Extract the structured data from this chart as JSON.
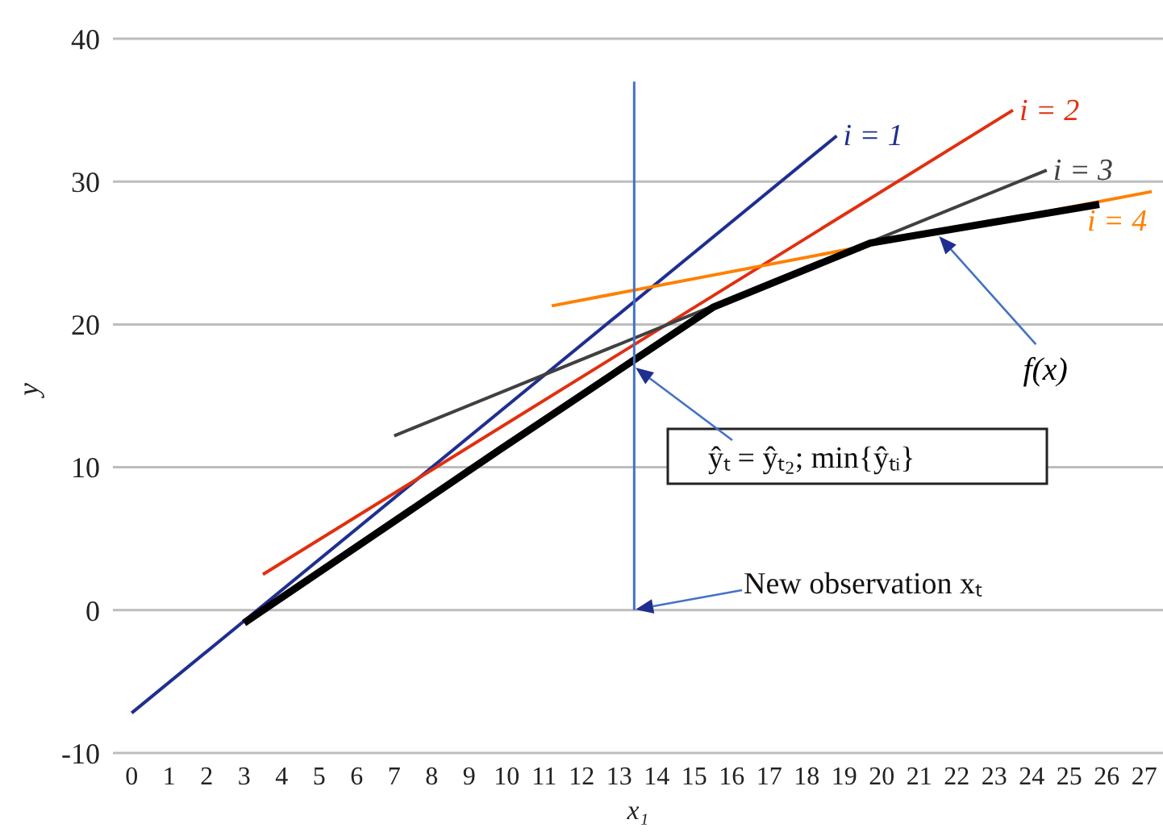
{
  "chart_data": {
    "type": "line",
    "xlabel": "x₁",
    "ylabel": "y",
    "xlim": [
      -0.5,
      27.5
    ],
    "xticks": [
      0,
      1,
      2,
      3,
      4,
      5,
      6,
      7,
      8,
      9,
      10,
      11,
      12,
      13,
      14,
      15,
      16,
      17,
      18,
      19,
      20,
      21,
      22,
      23,
      24,
      25,
      26,
      27
    ],
    "ylim": [
      -10,
      40
    ],
    "yticks": [
      -10,
      0,
      10,
      20,
      30,
      40
    ],
    "grid": "y",
    "legend": false,
    "marker": "none",
    "series": [
      {
        "name": "i = 1",
        "color": "#1f2f8f",
        "x": [
          0,
          18.8
        ],
        "values": [
          -7.2,
          33.2
        ]
      },
      {
        "name": "i = 2",
        "color": "#e03010",
        "x": [
          3.5,
          23.5
        ],
        "values": [
          2.5,
          35.0
        ]
      },
      {
        "name": "i = 3",
        "color": "#404040",
        "x": [
          7.0,
          24.4
        ],
        "values": [
          12.2,
          30.8
        ]
      },
      {
        "name": "i = 4",
        "color": "#ff8000",
        "x": [
          11.2,
          27.2
        ],
        "values": [
          21.3,
          29.3
        ]
      },
      {
        "name": "f(x)",
        "color": "#000000",
        "x": [
          3.0,
          9.8,
          15.5,
          19.7,
          25.8
        ],
        "values": [
          -0.9,
          11.2,
          21.2,
          25.7,
          28.4
        ]
      },
      {
        "color": "#4472c4",
        "x": [
          13.4,
          13.4
        ],
        "values": [
          0,
          37
        ]
      }
    ],
    "annotations": [
      "ŷₜ = ŷₜ₂;  min{ŷₜᵢ}",
      "New observation xₜ"
    ]
  }
}
